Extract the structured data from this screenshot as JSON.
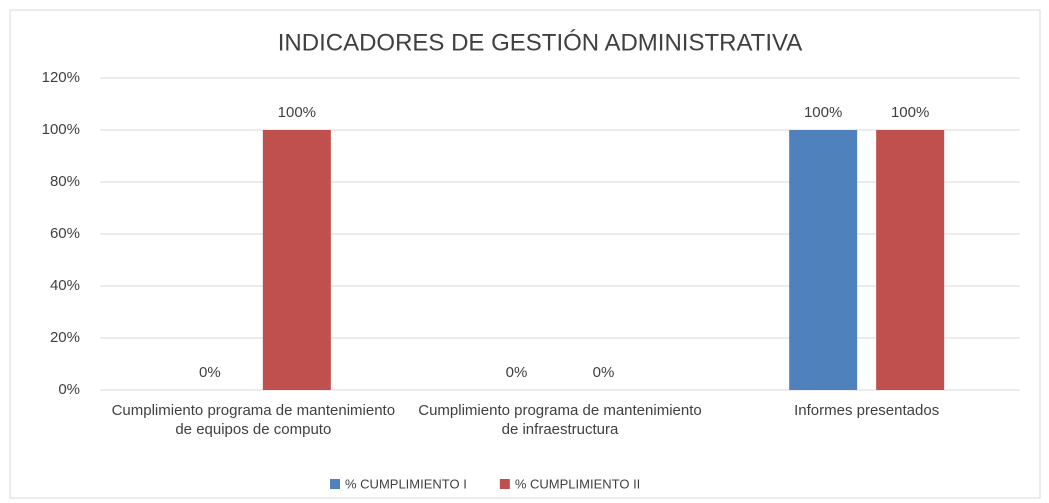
{
  "chart_data": {
    "type": "bar",
    "title": "INDICADORES DE GESTIÓN ADMINISTRATIVA",
    "categories": [
      "Cumplimiento programa de mantenimiento de equipos de computo",
      "Cumplimiento programa de mantenimiento de infraestructura",
      "Informes presentados"
    ],
    "series": [
      {
        "name": "% CUMPLIMIENTO I",
        "color": "#4f81bd",
        "values": [
          0,
          0,
          100
        ],
        "value_labels": [
          "0%",
          "0%",
          "100%"
        ]
      },
      {
        "name": "% CUMPLIMIENTO II",
        "color": "#c0504d",
        "values": [
          100,
          0,
          100
        ],
        "value_labels": [
          "100%",
          "0%",
          "100%"
        ]
      }
    ],
    "ylim": [
      0,
      120
    ],
    "yticks": [
      {
        "value": 0,
        "label": "0%"
      },
      {
        "value": 20,
        "label": "20%"
      },
      {
        "value": 40,
        "label": "40%"
      },
      {
        "value": 60,
        "label": "60%"
      },
      {
        "value": 80,
        "label": "80%"
      },
      {
        "value": 100,
        "label": "100%"
      },
      {
        "value": 120,
        "label": "120%"
      }
    ],
    "grid": true,
    "legend": "bottom"
  }
}
